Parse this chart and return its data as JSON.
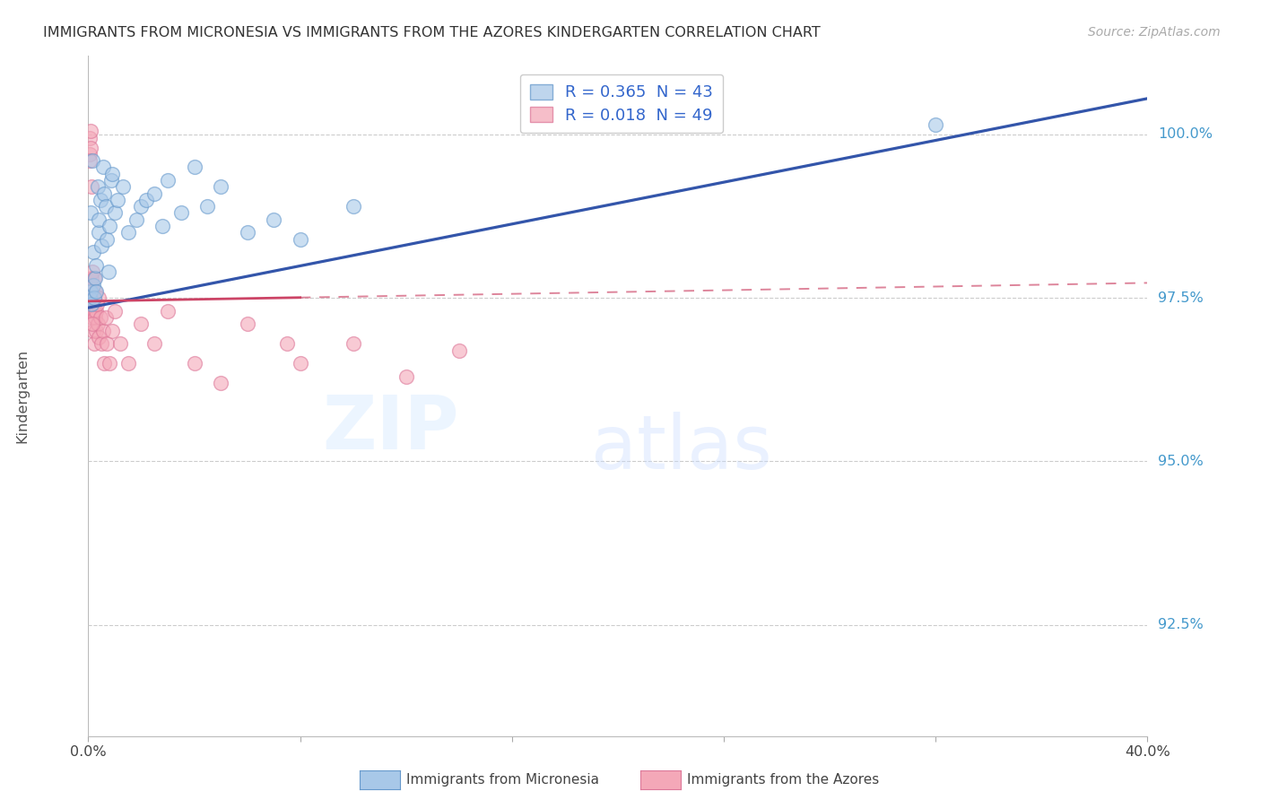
{
  "title": "IMMIGRANTS FROM MICRONESIA VS IMMIGRANTS FROM THE AZORES KINDERGARTEN CORRELATION CHART",
  "source": "Source: ZipAtlas.com",
  "ylabel": "Kindergarten",
  "xmin": 0.0,
  "xmax": 40.0,
  "ymin": 90.8,
  "ymax": 101.2,
  "ytick_positions": [
    92.5,
    95.0,
    97.5,
    100.0
  ],
  "ytick_labels": [
    "92.5%",
    "95.0%",
    "97.5%",
    "100.0%"
  ],
  "blue_color": "#A8C8E8",
  "blue_edge_color": "#6699CC",
  "pink_color": "#F4A8B8",
  "pink_edge_color": "#DD7799",
  "blue_line_color": "#3355AA",
  "pink_line_color": "#CC4466",
  "right_axis_color": "#4499CC",
  "legend_text_color": "#3366CC",
  "legend_r1": "R = 0.365",
  "legend_n1": "N = 43",
  "legend_r2": "R = 0.018",
  "legend_n2": "N = 49",
  "blue_line_x0": 0.0,
  "blue_line_y0": 97.35,
  "blue_line_x1": 40.0,
  "blue_line_y1": 100.55,
  "pink_line_x0": 0.0,
  "pink_line_y0": 97.45,
  "pink_line_x1": 40.0,
  "pink_line_y1": 97.73,
  "pink_solid_xend": 8.0,
  "blue_main_x": [
    0.05,
    0.08,
    0.1,
    0.12,
    0.15,
    0.18,
    0.2,
    0.22,
    0.25,
    0.28,
    0.3,
    0.35,
    0.38,
    0.4,
    0.45,
    0.5,
    0.55,
    0.6,
    0.65,
    0.7,
    0.75,
    0.8,
    0.85,
    0.9,
    1.0,
    1.1,
    1.3,
    1.5,
    1.8,
    2.0,
    2.2,
    2.5,
    2.8,
    3.0,
    3.5,
    4.0,
    4.5,
    5.0,
    6.0,
    7.0,
    8.0,
    10.0
  ],
  "blue_main_y": [
    97.5,
    97.6,
    98.8,
    97.4,
    99.6,
    97.7,
    98.2,
    97.5,
    97.8,
    98.0,
    97.6,
    99.2,
    98.5,
    98.7,
    99.0,
    98.3,
    99.5,
    99.1,
    98.9,
    98.4,
    97.9,
    98.6,
    99.3,
    99.4,
    98.8,
    99.0,
    99.2,
    98.5,
    98.7,
    98.9,
    99.0,
    99.1,
    98.6,
    99.3,
    98.8,
    99.5,
    98.9,
    99.2,
    98.5,
    98.7,
    98.4,
    98.9
  ],
  "blue_outlier_x": 32.0,
  "blue_outlier_y": 100.15,
  "pink_x": [
    0.05,
    0.06,
    0.08,
    0.09,
    0.1,
    0.11,
    0.12,
    0.13,
    0.15,
    0.16,
    0.17,
    0.18,
    0.19,
    0.2,
    0.21,
    0.22,
    0.23,
    0.25,
    0.27,
    0.28,
    0.3,
    0.32,
    0.35,
    0.38,
    0.4,
    0.45,
    0.5,
    0.55,
    0.6,
    0.65,
    0.7,
    0.8,
    0.9,
    1.0,
    1.2,
    1.5,
    2.0,
    2.5,
    3.0,
    4.0,
    5.0,
    6.0,
    7.5,
    8.0,
    10.0,
    12.0,
    14.0,
    0.07,
    0.14
  ],
  "pink_y": [
    99.95,
    99.7,
    99.8,
    100.05,
    97.5,
    97.8,
    99.2,
    97.3,
    97.6,
    97.9,
    97.2,
    97.4,
    97.0,
    97.5,
    97.3,
    97.8,
    96.8,
    97.2,
    97.6,
    97.3,
    97.0,
    97.4,
    97.1,
    96.9,
    97.5,
    97.2,
    96.8,
    97.0,
    96.5,
    97.2,
    96.8,
    96.5,
    97.0,
    97.3,
    96.8,
    96.5,
    97.1,
    96.8,
    97.3,
    96.5,
    96.2,
    97.1,
    96.8,
    96.5,
    96.8,
    96.3,
    96.7,
    99.6,
    97.1
  ],
  "marker_size": 130,
  "title_fontsize": 11.5,
  "tick_fontsize": 11.5,
  "legend_fontsize": 13,
  "source_fontsize": 10
}
